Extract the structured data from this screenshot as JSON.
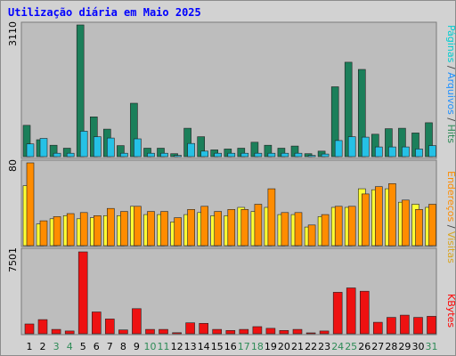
{
  "title": "Utilização diária em Maio 2025",
  "panels": {
    "top": {
      "scale_label": "3110"
    },
    "middle": {
      "scale_label": "80"
    },
    "bottom": {
      "scale_label": "7501"
    }
  },
  "side_labels": {
    "top": [
      {
        "text": "Hits",
        "color": "#2e8b57"
      },
      {
        "text": "/",
        "color": "#444444"
      },
      {
        "text": "Arquivos",
        "color": "#1e90ff"
      },
      {
        "text": "/",
        "color": "#444444"
      },
      {
        "text": "Páginas",
        "color": "#00ced1"
      }
    ],
    "middle": [
      {
        "text": "Visitas",
        "color": "#daa520"
      },
      {
        "text": "/",
        "color": "#444444"
      },
      {
        "text": "Endereços",
        "color": "#ff8c00"
      }
    ],
    "bottom": [
      {
        "text": "KBytes",
        "color": "#ff0000"
      }
    ]
  },
  "colors": {
    "hits": "#1b7f5a",
    "files": "#25c1e6",
    "pages": "#00a0c0",
    "visits": "#ffff33",
    "sites": "#ff8c00",
    "kbytes": "#ee1111",
    "weekday_label": "#000000",
    "weekend_label": "#2e8b57",
    "plot_bg": "#bdbdbd"
  },
  "chart_data": {
    "type": "bar",
    "categories": [
      "1",
      "2",
      "3",
      "4",
      "5",
      "6",
      "7",
      "8",
      "9",
      "10",
      "11",
      "12",
      "13",
      "14",
      "15",
      "16",
      "17",
      "18",
      "19",
      "20",
      "21",
      "22",
      "23",
      "24",
      "25",
      "26",
      "27",
      "28",
      "29",
      "30",
      "31"
    ],
    "weekend_days": [
      "3",
      "4",
      "10",
      "11",
      "17",
      "18",
      "24",
      "25",
      "31"
    ],
    "series": [
      {
        "name": "Hits",
        "panel": "top",
        "values": [
          740,
          400,
          270,
          200,
          3110,
          940,
          650,
          260,
          1260,
          200,
          200,
          70,
          670,
          470,
          160,
          180,
          200,
          340,
          270,
          200,
          250,
          70,
          130,
          1650,
          2230,
          2060,
          530,
          660,
          670,
          560,
          800
        ]
      },
      {
        "name": "Arquivos",
        "panel": "top",
        "values": [
          300,
          430,
          80,
          80,
          600,
          470,
          440,
          80,
          420,
          80,
          80,
          30,
          310,
          130,
          80,
          80,
          80,
          80,
          80,
          80,
          80,
          30,
          60,
          380,
          470,
          460,
          230,
          230,
          230,
          180,
          260
        ]
      },
      {
        "name": "Visitas",
        "panel": "middle",
        "ylim": [
          0,
          80
        ],
        "values": [
          58,
          21,
          26,
          29,
          26,
          27,
          29,
          29,
          38,
          30,
          30,
          23,
          30,
          32,
          29,
          29,
          37,
          33,
          37,
          30,
          30,
          18,
          28,
          37,
          37,
          55,
          54,
          55,
          42,
          40,
          37
        ]
      },
      {
        "name": "Endereços",
        "panel": "middle",
        "ylim": [
          0,
          80
        ],
        "values": [
          80,
          24,
          28,
          31,
          32,
          29,
          36,
          33,
          38,
          33,
          33,
          27,
          35,
          38,
          33,
          35,
          35,
          40,
          55,
          32,
          32,
          20,
          30,
          38,
          38,
          50,
          57,
          60,
          44,
          35,
          40
        ]
      },
      {
        "name": "KBytes",
        "panel": "bottom",
        "ylim": [
          0,
          7501
        ],
        "values": [
          900,
          1300,
          400,
          250,
          7501,
          2000,
          1350,
          350,
          2300,
          400,
          400,
          100,
          1000,
          950,
          400,
          300,
          400,
          650,
          500,
          300,
          400,
          80,
          250,
          3800,
          4200,
          3900,
          1050,
          1500,
          1700,
          1500,
          1600
        ]
      }
    ]
  }
}
